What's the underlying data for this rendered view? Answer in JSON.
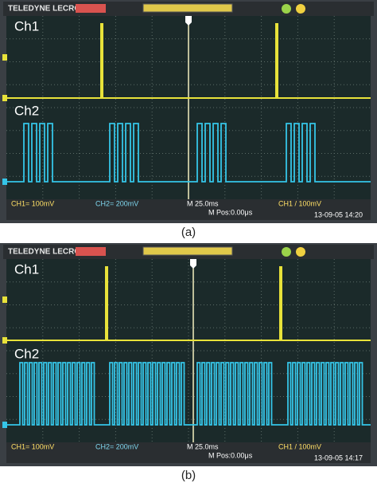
{
  "panels": [
    {
      "brand": "TELEDYNE LECROY",
      "ch1_label": "Ch1",
      "ch2_label": "Ch2",
      "status": [
        "CH1= 100mV",
        "CH2= 200mV",
        "M 25.0ms",
        "M Pos:0.00μs",
        "CH1 / 100mV",
        "13-09-05 14:20"
      ],
      "caption": "(a)"
    },
    {
      "brand": "TELEDYNE LECROY",
      "ch1_label": "Ch1",
      "ch2_label": "Ch2",
      "status": [
        "CH1= 100mV",
        "CH2= 200mV",
        "M 25.0ms",
        "M Pos:0.00μs",
        "CH1 / 100mV",
        "13-09-05 14:17"
      ],
      "caption": "(b)"
    }
  ]
}
